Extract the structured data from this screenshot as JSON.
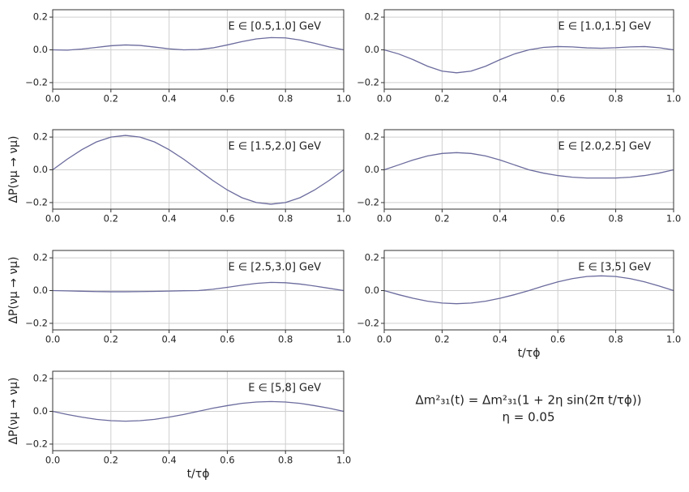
{
  "chart_data": [
    {
      "type": "line",
      "annotation": "E ∈ [0.5,1.0] GeV",
      "color": "#6b6b9e",
      "grid": true,
      "x": [
        0,
        0.05,
        0.1,
        0.15,
        0.2,
        0.25,
        0.3,
        0.35,
        0.4,
        0.45,
        0.5,
        0.55,
        0.6,
        0.65,
        0.7,
        0.75,
        0.8,
        0.85,
        0.9,
        0.95,
        1
      ],
      "values": [
        0,
        -0.002,
        0.005,
        0.015,
        0.025,
        0.03,
        0.027,
        0.017,
        0.006,
        0,
        0.002,
        0.012,
        0.03,
        0.05,
        0.067,
        0.075,
        0.073,
        0.06,
        0.04,
        0.018,
        0
      ],
      "xlim": [
        0,
        1
      ],
      "xticks": [
        {
          "value": 0,
          "label": "0.0"
        },
        0.2,
        0.4,
        0.6,
        0.8,
        {
          "value": 1,
          "label": "1.0"
        }
      ],
      "ylim": [
        -0.24,
        0.245
      ],
      "yticks": [
        {
          "value": -0.2,
          "label": "−0.2"
        },
        {
          "value": 0,
          "label": "0.0"
        },
        0.2
      ]
    },
    {
      "type": "line",
      "annotation": "E ∈ [1.0,1.5] GeV",
      "color": "#6b6b9e",
      "grid": true,
      "x": [
        0,
        0.05,
        0.1,
        0.15,
        0.2,
        0.25,
        0.3,
        0.35,
        0.4,
        0.45,
        0.5,
        0.55,
        0.6,
        0.65,
        0.7,
        0.75,
        0.8,
        0.85,
        0.9,
        0.95,
        1
      ],
      "values": [
        0,
        -0.025,
        -0.06,
        -0.1,
        -0.13,
        -0.14,
        -0.13,
        -0.1,
        -0.06,
        -0.025,
        0,
        0.015,
        0.02,
        0.018,
        0.012,
        0.01,
        0.013,
        0.018,
        0.02,
        0.013,
        0
      ],
      "xlim": [
        0,
        1
      ],
      "xticks": [
        {
          "value": 0,
          "label": "0.0"
        },
        0.2,
        0.4,
        0.6,
        0.8,
        {
          "value": 1,
          "label": "1.0"
        }
      ],
      "ylim": [
        -0.24,
        0.245
      ],
      "yticks": [
        {
          "value": -0.2,
          "label": "−0.2"
        },
        {
          "value": 0,
          "label": "0.0"
        },
        0.2
      ]
    },
    {
      "type": "line",
      "annotation": "E ∈ [1.5,2.0] GeV",
      "color": "#6b6b9e",
      "grid": true,
      "ylabel": "ΔP(νμ → νμ)",
      "x": [
        0,
        0.05,
        0.1,
        0.15,
        0.2,
        0.25,
        0.3,
        0.35,
        0.4,
        0.45,
        0.5,
        0.55,
        0.6,
        0.65,
        0.7,
        0.75,
        0.8,
        0.85,
        0.9,
        0.95,
        1
      ],
      "values": [
        0,
        0.065,
        0.123,
        0.17,
        0.2,
        0.21,
        0.2,
        0.17,
        0.123,
        0.065,
        0,
        -0.065,
        -0.123,
        -0.17,
        -0.2,
        -0.21,
        -0.2,
        -0.17,
        -0.123,
        -0.065,
        0
      ],
      "xlim": [
        0,
        1
      ],
      "xticks": [
        {
          "value": 0,
          "label": "0.0"
        },
        0.2,
        0.4,
        0.6,
        0.8,
        {
          "value": 1,
          "label": "1.0"
        }
      ],
      "ylim": [
        -0.24,
        0.245
      ],
      "yticks": [
        {
          "value": -0.2,
          "label": "−0.2"
        },
        {
          "value": 0,
          "label": "0.0"
        },
        0.2
      ]
    },
    {
      "type": "line",
      "annotation": "E ∈ [2.0,2.5] GeV",
      "color": "#6b6b9e",
      "grid": true,
      "x": [
        0,
        0.05,
        0.1,
        0.15,
        0.2,
        0.25,
        0.3,
        0.35,
        0.4,
        0.45,
        0.5,
        0.55,
        0.6,
        0.65,
        0.7,
        0.75,
        0.8,
        0.85,
        0.9,
        0.95,
        1
      ],
      "values": [
        0,
        0.03,
        0.06,
        0.085,
        0.1,
        0.105,
        0.1,
        0.085,
        0.06,
        0.03,
        0,
        -0.02,
        -0.035,
        -0.045,
        -0.05,
        -0.05,
        -0.05,
        -0.045,
        -0.035,
        -0.02,
        0
      ],
      "xlim": [
        0,
        1
      ],
      "xticks": [
        {
          "value": 0,
          "label": "0.0"
        },
        0.2,
        0.4,
        0.6,
        0.8,
        {
          "value": 1,
          "label": "1.0"
        }
      ],
      "ylim": [
        -0.24,
        0.245
      ],
      "yticks": [
        {
          "value": -0.2,
          "label": "−0.2"
        },
        {
          "value": 0,
          "label": "0.0"
        },
        0.2
      ]
    },
    {
      "type": "line",
      "annotation": "E ∈ [2.5,3.0] GeV",
      "color": "#6b6b9e",
      "grid": true,
      "ylabel": "ΔP(νμ → νμ)",
      "x": [
        0,
        0.05,
        0.1,
        0.15,
        0.2,
        0.25,
        0.3,
        0.35,
        0.4,
        0.45,
        0.5,
        0.55,
        0.6,
        0.65,
        0.7,
        0.75,
        0.8,
        0.85,
        0.9,
        0.95,
        1
      ],
      "values": [
        0,
        -0.002,
        -0.004,
        -0.006,
        -0.007,
        -0.007,
        -0.006,
        -0.005,
        -0.003,
        -0.001,
        0,
        0.008,
        0.02,
        0.033,
        0.044,
        0.05,
        0.048,
        0.04,
        0.028,
        0.014,
        0
      ],
      "xlim": [
        0,
        1
      ],
      "xticks": [
        {
          "value": 0,
          "label": "0.0"
        },
        0.2,
        0.4,
        0.6,
        0.8,
        {
          "value": 1,
          "label": "1.0"
        }
      ],
      "ylim": [
        -0.24,
        0.245
      ],
      "yticks": [
        {
          "value": -0.2,
          "label": "−0.2"
        },
        {
          "value": 0,
          "label": "0.0"
        },
        0.2
      ]
    },
    {
      "type": "line",
      "annotation": "E ∈ [3,5] GeV",
      "color": "#6b6b9e",
      "grid": true,
      "xlabel": "t/τϕ",
      "x": [
        0,
        0.05,
        0.1,
        0.15,
        0.2,
        0.25,
        0.3,
        0.35,
        0.4,
        0.45,
        0.5,
        0.55,
        0.6,
        0.65,
        0.7,
        0.75,
        0.8,
        0.85,
        0.9,
        0.95,
        1
      ],
      "values": [
        0,
        -0.025,
        -0.047,
        -0.065,
        -0.076,
        -0.08,
        -0.076,
        -0.065,
        -0.047,
        -0.025,
        0,
        0.028,
        0.053,
        0.073,
        0.086,
        0.09,
        0.086,
        0.073,
        0.053,
        0.028,
        0
      ],
      "xlim": [
        0,
        1
      ],
      "xticks": [
        {
          "value": 0,
          "label": "0.0"
        },
        0.2,
        0.4,
        0.6,
        0.8,
        {
          "value": 1,
          "label": "1.0"
        }
      ],
      "ylim": [
        -0.24,
        0.245
      ],
      "yticks": [
        {
          "value": -0.2,
          "label": "−0.2"
        },
        {
          "value": 0,
          "label": "0.0"
        },
        0.2
      ]
    },
    {
      "type": "line",
      "annotation": "E ∈ [5,8] GeV",
      "color": "#6b6b9e",
      "grid": true,
      "ylabel": "ΔP(νμ → νμ)",
      "xlabel": "t/τϕ",
      "x": [
        0,
        0.05,
        0.1,
        0.15,
        0.2,
        0.25,
        0.3,
        0.35,
        0.4,
        0.45,
        0.5,
        0.55,
        0.6,
        0.65,
        0.7,
        0.75,
        0.8,
        0.85,
        0.9,
        0.95,
        1
      ],
      "values": [
        0,
        -0.019,
        -0.035,
        -0.049,
        -0.057,
        -0.06,
        -0.057,
        -0.049,
        -0.035,
        -0.019,
        0,
        0.019,
        0.035,
        0.049,
        0.057,
        0.06,
        0.057,
        0.049,
        0.035,
        0.019,
        0
      ],
      "xlim": [
        0,
        1
      ],
      "xticks": [
        {
          "value": 0,
          "label": "0.0"
        },
        0.2,
        0.4,
        0.6,
        0.8,
        {
          "value": 1,
          "label": "1.0"
        }
      ],
      "ylim": [
        -0.24,
        0.245
      ],
      "yticks": [
        {
          "value": -0.2,
          "label": "−0.2"
        },
        {
          "value": 0,
          "label": "0.0"
        },
        0.2
      ]
    }
  ],
  "formula": [
    "Δm²₃₁(t) = Δm²₃₁(1 + 2η sin(2π t/τϕ))",
    "η = 0.05"
  ]
}
